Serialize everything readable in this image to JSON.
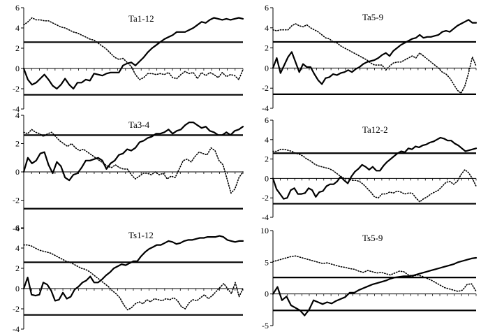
{
  "chart_data": [
    {
      "type": "line",
      "title": "Ta1-12",
      "ylim": [
        -4,
        6
      ],
      "yticks": [
        -4,
        -2,
        0,
        2,
        4,
        6
      ],
      "ytick_labels": [
        "-4",
        "-2",
        "0",
        "2",
        "4",
        "6"
      ],
      "hlines": [
        2.6,
        -2.6
      ],
      "grid": false,
      "legend": "none",
      "series": [
        {
          "style": "solid",
          "values": [
            0.0,
            -1.1,
            -1.6,
            -1.4,
            -1.0,
            -0.6,
            -1.1,
            -1.7,
            -2.0,
            -1.6,
            -1.0,
            -1.6,
            -2.0,
            -1.4,
            -1.4,
            -1.1,
            -1.2,
            -0.5,
            -0.6,
            -0.7,
            -0.5,
            -0.4,
            -0.4,
            -0.4,
            0.3,
            0.5,
            0.6,
            0.3,
            0.7,
            1.1,
            1.6,
            2.0,
            2.3,
            2.6,
            2.9,
            3.1,
            3.3,
            3.6,
            3.6,
            3.6,
            3.8,
            4.0,
            4.3,
            4.6,
            4.5,
            4.8,
            5.0,
            4.9,
            4.8,
            4.9,
            4.8,
            4.9,
            5.0,
            4.9
          ]
        },
        {
          "style": "dotted",
          "values": [
            4.3,
            4.6,
            5.0,
            4.8,
            4.8,
            4.7,
            4.7,
            4.5,
            4.3,
            4.1,
            4.0,
            3.8,
            3.6,
            3.5,
            3.3,
            3.1,
            2.9,
            2.8,
            2.5,
            2.2,
            1.9,
            1.5,
            1.1,
            0.9,
            1.0,
            0.6,
            0.2,
            -0.6,
            -1.1,
            -0.9,
            -0.5,
            -0.5,
            -0.6,
            -0.5,
            -0.6,
            -0.4,
            -0.9,
            -1.0,
            -0.6,
            -0.3,
            -0.5,
            -0.4,
            -1.0,
            -0.4,
            -0.7,
            -0.4,
            -0.6,
            -0.9,
            -0.4,
            -0.8,
            -0.6,
            -0.7,
            -1.1,
            -0.1
          ]
        }
      ]
    },
    {
      "type": "line",
      "title": "Ta5-9",
      "ylim": [
        -4,
        6
      ],
      "yticks": [
        -4,
        -2,
        0,
        2,
        4,
        6
      ],
      "ytick_labels": [
        "-4",
        "-2",
        "0",
        "2",
        "4",
        "6"
      ],
      "hlines": [
        2.6,
        -2.6
      ],
      "grid": false,
      "legend": "none",
      "series": [
        {
          "style": "solid",
          "values": [
            0.0,
            1.0,
            -0.5,
            0.3,
            1.1,
            1.6,
            0.6,
            -0.4,
            0.4,
            0.1,
            0.1,
            -0.6,
            -1.2,
            -1.6,
            -1.0,
            -0.9,
            -0.6,
            -0.7,
            -0.5,
            -0.4,
            -0.2,
            -0.4,
            -0.1,
            0.1,
            0.4,
            0.6,
            0.7,
            0.8,
            1.0,
            1.3,
            1.5,
            1.2,
            1.7,
            2.0,
            2.3,
            2.5,
            2.7,
            2.9,
            3.0,
            3.3,
            3.0,
            3.1,
            3.1,
            3.2,
            3.3,
            3.6,
            3.7,
            3.6,
            3.9,
            4.2,
            4.4,
            4.6,
            4.8,
            4.5,
            4.5
          ]
        },
        {
          "style": "dotted",
          "values": [
            3.8,
            3.7,
            3.8,
            3.8,
            3.8,
            4.2,
            4.4,
            4.2,
            4.1,
            4.3,
            4.0,
            3.8,
            3.6,
            3.3,
            3.0,
            2.9,
            2.6,
            2.5,
            2.2,
            2.0,
            1.8,
            1.6,
            1.4,
            1.2,
            1.0,
            0.8,
            0.5,
            0.3,
            0.3,
            0.3,
            -0.2,
            0.2,
            0.5,
            0.6,
            0.6,
            0.8,
            1.0,
            1.2,
            1.0,
            1.5,
            1.2,
            0.9,
            0.6,
            0.3,
            0.0,
            -0.4,
            -0.6,
            -1.0,
            -1.6,
            -2.2,
            -2.5,
            -1.8,
            -0.5,
            1.1,
            0.2
          ]
        }
      ]
    },
    {
      "type": "line",
      "title": "Ta3-4",
      "ylim": [
        -4,
        4
      ],
      "yticks": [
        -4,
        -2,
        0,
        2,
        4
      ],
      "ytick_labels": [
        "-4",
        "-2",
        "0",
        "2",
        "4"
      ],
      "hlines": [
        2.6,
        -2.6
      ],
      "grid": false,
      "legend": "none",
      "series": [
        {
          "style": "solid",
          "values": [
            0.0,
            1.0,
            0.6,
            0.8,
            1.3,
            1.4,
            0.5,
            -0.1,
            0.7,
            0.4,
            -0.4,
            -0.6,
            -0.2,
            -0.1,
            0.3,
            0.8,
            0.8,
            0.9,
            1.0,
            0.8,
            0.2,
            0.6,
            0.8,
            1.2,
            1.3,
            1.6,
            1.5,
            1.7,
            2.1,
            2.2,
            2.4,
            2.5,
            2.7,
            2.7,
            2.8,
            3.0,
            2.7,
            2.9,
            3.0,
            3.3,
            3.5,
            3.5,
            3.3,
            3.1,
            3.2,
            2.9,
            2.8,
            2.6,
            2.6,
            2.8,
            2.6,
            2.9,
            3.0,
            3.2
          ]
        },
        {
          "style": "dotted",
          "values": [
            2.8,
            2.7,
            3.0,
            2.8,
            2.7,
            2.5,
            2.7,
            2.8,
            2.5,
            2.2,
            2.0,
            1.8,
            2.0,
            1.7,
            1.5,
            1.6,
            1.4,
            1.2,
            1.0,
            0.8,
            0.6,
            0.4,
            0.3,
            0.5,
            0.3,
            0.2,
            0.2,
            -0.2,
            -0.5,
            -0.3,
            -0.1,
            -0.1,
            -0.2,
            0.0,
            -0.2,
            -0.1,
            -0.5,
            -0.3,
            -0.4,
            0.2,
            0.8,
            0.9,
            0.7,
            1.1,
            1.4,
            1.3,
            1.2,
            1.7,
            1.5,
            0.8,
            0.5,
            -0.5,
            -1.5,
            -1.2,
            -0.4,
            0.0
          ]
        }
      ]
    },
    {
      "type": "line",
      "title": "Ta12-2",
      "ylim": [
        -4,
        6
      ],
      "yticks": [
        -4,
        -2,
        0,
        2,
        4,
        6
      ],
      "ytick_labels": [
        "-4",
        "-2",
        "0",
        "2",
        "4",
        "6"
      ],
      "hlines": [
        2.6,
        -2.6
      ],
      "grid": false,
      "legend": "none",
      "series": [
        {
          "style": "solid",
          "values": [
            0.0,
            -1.1,
            -1.6,
            -2.1,
            -2.0,
            -1.2,
            -1.0,
            -1.6,
            -1.6,
            -1.5,
            -1.0,
            -1.2,
            -1.9,
            -1.4,
            -1.3,
            -0.8,
            -0.6,
            -0.6,
            -0.3,
            0.2,
            -0.2,
            -0.5,
            0.2,
            0.7,
            1.0,
            1.4,
            1.2,
            0.9,
            1.2,
            0.8,
            0.8,
            1.3,
            1.7,
            2.0,
            2.3,
            2.6,
            2.8,
            2.7,
            3.1,
            3.0,
            3.3,
            3.2,
            3.4,
            3.5,
            3.7,
            3.8,
            4.0,
            4.2,
            4.1,
            3.9,
            3.9,
            3.6,
            3.4,
            3.1,
            2.8,
            2.9,
            3.0,
            3.1
          ]
        },
        {
          "style": "dotted",
          "values": [
            2.8,
            2.8,
            3.0,
            3.0,
            2.9,
            2.8,
            2.6,
            2.5,
            2.3,
            2.0,
            1.8,
            1.5,
            1.3,
            1.2,
            1.1,
            1.0,
            0.8,
            0.5,
            0.2,
            0.0,
            0.0,
            -0.2,
            -0.2,
            -0.3,
            -0.6,
            -1.0,
            -1.4,
            -1.9,
            -2.0,
            -1.6,
            -1.6,
            -1.4,
            -1.5,
            -1.3,
            -1.4,
            -1.6,
            -1.5,
            -1.5,
            -2.0,
            -2.4,
            -2.1,
            -1.9,
            -1.6,
            -1.4,
            -1.2,
            -0.8,
            -0.4,
            -0.3,
            -0.6,
            -0.3,
            0.4,
            0.9,
            0.6,
            0.0,
            -0.8
          ]
        }
      ]
    },
    {
      "type": "line",
      "title": "Ts1-12",
      "ylim": [
        -4,
        6
      ],
      "yticks": [
        -4,
        -2,
        0,
        2,
        4,
        6
      ],
      "ytick_labels": [
        "-4",
        "-2",
        "0",
        "2",
        "4",
        "6"
      ],
      "hlines": [
        2.6,
        -2.6
      ],
      "grid": false,
      "legend": "none",
      "series": [
        {
          "style": "solid",
          "values": [
            0.0,
            1.1,
            -0.6,
            -0.7,
            -0.6,
            0.6,
            0.4,
            -0.2,
            -1.2,
            -1.1,
            -0.4,
            -1.0,
            -0.8,
            -0.1,
            0.2,
            0.6,
            0.8,
            1.2,
            0.6,
            0.6,
            0.9,
            1.3,
            1.6,
            2.0,
            2.2,
            2.4,
            2.3,
            2.5,
            2.7,
            2.7,
            3.2,
            3.6,
            3.9,
            4.1,
            4.3,
            4.3,
            4.5,
            4.7,
            4.6,
            4.4,
            4.5,
            4.7,
            4.8,
            4.8,
            4.9,
            5.0,
            5.0,
            5.1,
            5.1,
            5.1,
            5.2,
            5.1,
            4.8,
            4.7,
            4.6,
            4.7,
            4.7
          ]
        },
        {
          "style": "dotted",
          "values": [
            4.3,
            4.3,
            4.2,
            4.0,
            3.8,
            3.7,
            3.6,
            3.5,
            3.3,
            3.1,
            2.9,
            2.7,
            2.6,
            2.4,
            2.2,
            2.0,
            1.9,
            1.7,
            1.4,
            1.1,
            0.8,
            0.5,
            0.2,
            -0.2,
            -0.5,
            -0.9,
            -1.6,
            -2.1,
            -1.9,
            -1.5,
            -1.3,
            -1.5,
            -1.1,
            -1.3,
            -1.0,
            -1.1,
            -1.2,
            -1.0,
            -1.1,
            -0.9,
            -1.2,
            -1.8,
            -2.0,
            -1.4,
            -1.1,
            -1.2,
            -0.9,
            -0.6,
            -1.0,
            -0.7,
            -0.3,
            0.1,
            0.5,
            0.0,
            -0.5,
            0.6,
            -0.8,
            0.0
          ]
        }
      ]
    },
    {
      "type": "line",
      "title": "Ts5-9",
      "ylim": [
        -5,
        10
      ],
      "yticks": [
        -5,
        0,
        5,
        10
      ],
      "ytick_labels": [
        "-5",
        "0",
        "5",
        "10"
      ],
      "hlines": [
        2.6,
        -2.6
      ],
      "grid": false,
      "legend": "none",
      "series": [
        {
          "style": "solid",
          "values": [
            0.0,
            1.1,
            -1.0,
            -0.4,
            -1.8,
            -2.2,
            -2.6,
            -3.4,
            -2.5,
            -1.0,
            -1.3,
            -1.6,
            -1.3,
            -1.5,
            -1.1,
            -0.8,
            -0.5,
            0.2,
            0.2,
            0.6,
            0.9,
            1.2,
            1.5,
            1.7,
            1.9,
            2.1,
            2.4,
            2.6,
            2.7,
            2.8,
            2.8,
            2.9,
            3.1,
            3.3,
            3.5,
            3.7,
            3.9,
            4.1,
            4.3,
            4.5,
            4.7,
            5.0,
            5.2,
            5.4,
            5.6,
            5.7
          ]
        },
        {
          "style": "dotted",
          "values": [
            5.1,
            5.3,
            5.5,
            5.7,
            5.9,
            6.0,
            5.8,
            5.6,
            5.4,
            5.2,
            5.0,
            4.8,
            4.9,
            4.7,
            4.5,
            4.3,
            4.2,
            4.0,
            3.9,
            3.6,
            3.4,
            3.7,
            3.5,
            3.3,
            3.4,
            3.2,
            3.0,
            3.3,
            3.6,
            3.5,
            3.0,
            2.8,
            3.0,
            2.8,
            2.5,
            2.2,
            1.8,
            1.4,
            1.0,
            0.8,
            0.6,
            0.4,
            0.6,
            1.5,
            1.6,
            0.4
          ]
        }
      ]
    }
  ]
}
